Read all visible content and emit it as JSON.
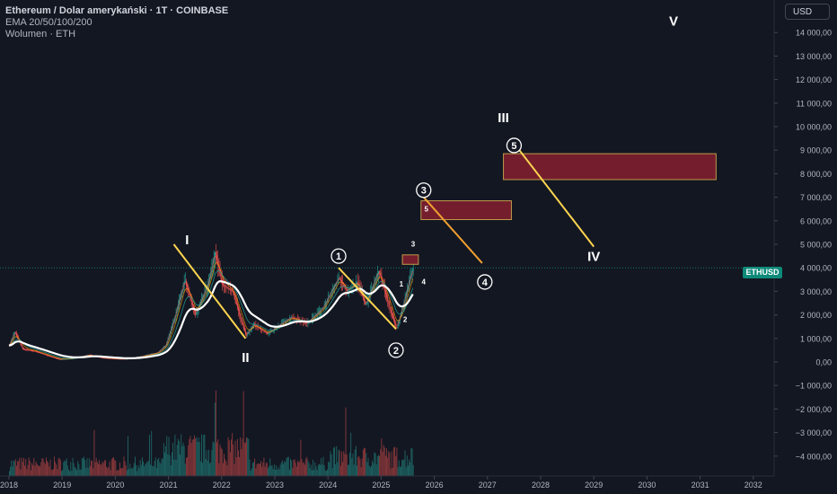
{
  "header": {
    "title": "Ethereum / Dolar amerykański · 1T · COINBASE",
    "indicators": "EMA 20/50/100/200",
    "volume": "Wolumen · ETH"
  },
  "currency_button": "USD",
  "price_tag": "ETHUSD",
  "colors": {
    "background": "#131722",
    "up_candle": "#26a69a",
    "down_candle": "#ef5350",
    "ema200": "#ffffff",
    "wave_line_yellow": "#ffd54f",
    "wave_line_orange": "#f0a030",
    "target_box_fill": "#7a1f2e",
    "target_box_border": "#c9a24d",
    "price_line": "#0e8a7a"
  },
  "chart_data": {
    "type": "candlestick",
    "symbol": "ETHUSD",
    "exchange": "COINBASE",
    "interval": "1T",
    "price_axis": {
      "ticks": [
        14000,
        13000,
        12000,
        11000,
        10000,
        9000,
        8000,
        7000,
        6000,
        5000,
        4000,
        3000,
        2000,
        1000,
        0,
        -1000,
        -2000,
        -3000,
        -4000
      ],
      "tick_labels": [
        "14 000,00",
        "13 000,00",
        "12 000,00",
        "11 000,00",
        "10 000,00",
        "9 000,00",
        "8 000,00",
        "7 000,00",
        "6 000,00",
        "5 000,00",
        "4 000,00",
        "3 000,00",
        "2 000,00",
        "1 000,00",
        "0,00",
        "−1 000,00",
        "−2 000,00",
        "−3 000,00",
        "−4 000,00"
      ],
      "range": [
        -4700,
        15500
      ]
    },
    "time_axis": {
      "labels": [
        "2018",
        "2019",
        "2020",
        "2021",
        "2022",
        "2023",
        "2024",
        "2025",
        "2026",
        "2027",
        "2028",
        "2029",
        "2030",
        "2031",
        "2032"
      ],
      "years": [
        2018,
        2019,
        2020,
        2021,
        2022,
        2023,
        2024,
        2025,
        2026,
        2027,
        2028,
        2029,
        2030,
        2031,
        2032
      ],
      "range": [
        2018.0,
        2032.4
      ]
    },
    "current_price": 4000,
    "price_path": [
      [
        2018.0,
        700
      ],
      [
        2018.1,
        1300
      ],
      [
        2018.25,
        550
      ],
      [
        2018.5,
        450
      ],
      [
        2018.75,
        250
      ],
      [
        2018.95,
        110
      ],
      [
        2019.2,
        150
      ],
      [
        2019.5,
        300
      ],
      [
        2019.75,
        180
      ],
      [
        2020.0,
        140
      ],
      [
        2020.2,
        130
      ],
      [
        2020.5,
        240
      ],
      [
        2020.8,
        400
      ],
      [
        2020.95,
        730
      ],
      [
        2021.1,
        1800
      ],
      [
        2021.3,
        3500
      ],
      [
        2021.5,
        2000
      ],
      [
        2021.75,
        3400
      ],
      [
        2021.87,
        4700
      ],
      [
        2022.0,
        3300
      ],
      [
        2022.2,
        3000
      ],
      [
        2022.45,
        1100
      ],
      [
        2022.6,
        1600
      ],
      [
        2022.85,
        1200
      ],
      [
        2023.1,
        1600
      ],
      [
        2023.3,
        1900
      ],
      [
        2023.6,
        1650
      ],
      [
        2023.9,
        2300
      ],
      [
        2024.2,
        3600
      ],
      [
        2024.35,
        3000
      ],
      [
        2024.55,
        3400
      ],
      [
        2024.7,
        2400
      ],
      [
        2024.95,
        3900
      ],
      [
        2025.1,
        2700
      ],
      [
        2025.28,
        1400
      ],
      [
        2025.42,
        2500
      ],
      [
        2025.55,
        3700
      ],
      [
        2025.6,
        4000
      ]
    ],
    "volume_scale_note": "",
    "annotations": {
      "roman": [
        {
          "label": "I",
          "x": 2021.35,
          "y": 5000
        },
        {
          "label": "II",
          "x": 2022.45,
          "y": 0
        },
        {
          "label": "III",
          "x": 2027.3,
          "y": 10200
        },
        {
          "label": "IV",
          "x": 2029.0,
          "y": 4300
        },
        {
          "label": "V",
          "x": 2030.5,
          "y": 14300
        }
      ],
      "circled": [
        {
          "label": "1",
          "x": 2024.2,
          "y": 4500
        },
        {
          "label": "2",
          "x": 2025.28,
          "y": 500
        },
        {
          "label": "3",
          "x": 2025.8,
          "y": 7300
        },
        {
          "label": "4",
          "x": 2026.95,
          "y": 3400
        },
        {
          "label": "5",
          "x": 2027.5,
          "y": 9200
        }
      ],
      "small": [
        {
          "label": "1",
          "x": 2025.38,
          "y": 3200
        },
        {
          "label": "2",
          "x": 2025.45,
          "y": 1700
        },
        {
          "label": "3",
          "x": 2025.6,
          "y": 4900
        },
        {
          "label": "4",
          "x": 2025.8,
          "y": 3300
        },
        {
          "label": "5",
          "x": 2025.85,
          "y": 6400
        }
      ]
    },
    "wave_lines": [
      {
        "from": [
          2021.1,
          5000
        ],
        "to": [
          2022.45,
          1000
        ],
        "color": "yellow"
      },
      {
        "from": [
          2024.2,
          4000
        ],
        "to": [
          2025.28,
          1400
        ],
        "color": "yellow"
      },
      {
        "from": [
          2025.8,
          7000
        ],
        "to": [
          2026.9,
          4200
        ],
        "color": "orange"
      },
      {
        "from": [
          2027.6,
          9000
        ],
        "to": [
          2029.0,
          4900
        ],
        "color": "yellow"
      }
    ],
    "target_zones": [
      {
        "x0": 2027.3,
        "x1": 2031.3,
        "y0": 7750,
        "y1": 8850
      },
      {
        "x0": 2025.75,
        "x1": 2027.45,
        "y0": 6050,
        "y1": 6850
      },
      {
        "x0": 2025.4,
        "x1": 2025.7,
        "y0": 4150,
        "y1": 4550
      }
    ]
  }
}
